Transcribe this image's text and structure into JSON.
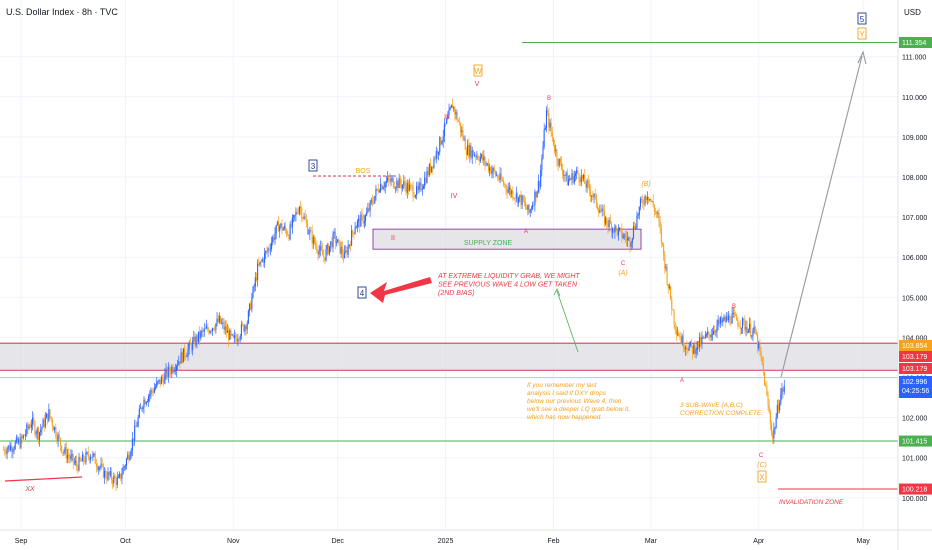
{
  "header": {
    "title": "U.S. Dollar Index · 8h · TVC",
    "currency": "USD"
  },
  "colors": {
    "up": "#2962ff",
    "down": "#f7a21b",
    "grid": "#f0f3fa",
    "red": "#f23645",
    "green": "#4caf50",
    "orange": "#f7a21b",
    "blue": "#2962ff",
    "zone": "#dcdce3",
    "arrow": "#9598a1",
    "navy": "#1e3a8a"
  },
  "chart_data": {
    "type": "candlestick",
    "y_axis": {
      "min": 99.7,
      "max": 112.2,
      "ticks": [
        100.0,
        101.0,
        102.0,
        103.0,
        104.0,
        105.0,
        106.0,
        107.0,
        108.0,
        109.0,
        110.0,
        111.0
      ]
    },
    "x_axis": {
      "ticks": [
        {
          "label": "Sep",
          "day": 0
        },
        {
          "label": "Oct",
          "day": 30
        },
        {
          "label": "Nov",
          "day": 61
        },
        {
          "label": "Dec",
          "day": 91
        },
        {
          "label": "2025",
          "day": 122
        },
        {
          "label": "Feb",
          "day": 153
        },
        {
          "label": "Mar",
          "day": 181
        },
        {
          "label": "Apr",
          "day": 212
        },
        {
          "label": "May",
          "day": 242
        }
      ],
      "max_day": 260
    },
    "price_path": [
      [
        -5,
        101.2
      ],
      [
        0,
        101.4
      ],
      [
        3,
        101.9
      ],
      [
        5,
        101.6
      ],
      [
        8,
        102.1
      ],
      [
        12,
        101.2
      ],
      [
        16,
        100.8
      ],
      [
        20,
        101.1
      ],
      [
        24,
        100.6
      ],
      [
        28,
        100.4
      ],
      [
        31,
        101.1
      ],
      [
        35,
        102.4
      ],
      [
        40,
        102.9
      ],
      [
        43,
        103.2
      ],
      [
        48,
        103.7
      ],
      [
        52,
        104.1
      ],
      [
        57,
        104.4
      ],
      [
        61,
        103.9
      ],
      [
        65,
        104.4
      ],
      [
        68,
        105.7
      ],
      [
        71,
        106.2
      ],
      [
        74,
        106.8
      ],
      [
        77,
        106.6
      ],
      [
        80,
        107.3
      ],
      [
        82,
        106.8
      ],
      [
        84,
        106.4
      ],
      [
        87,
        106.0
      ],
      [
        90,
        106.5
      ],
      [
        93,
        106.0
      ],
      [
        96,
        106.8
      ],
      [
        99,
        107.0
      ],
      [
        103,
        107.8
      ],
      [
        106,
        107.9
      ],
      [
        110,
        107.8
      ],
      [
        114,
        107.6
      ],
      [
        118,
        108.3
      ],
      [
        121,
        109.0
      ],
      [
        124,
        109.8
      ],
      [
        126,
        109.3
      ],
      [
        128,
        108.7
      ],
      [
        132,
        108.5
      ],
      [
        136,
        108.1
      ],
      [
        140,
        107.7
      ],
      [
        144,
        107.4
      ],
      [
        146,
        107.1
      ],
      [
        149,
        107.9
      ],
      [
        151,
        109.6
      ],
      [
        154,
        108.5
      ],
      [
        157,
        107.9
      ],
      [
        160,
        108.1
      ],
      [
        164,
        107.6
      ],
      [
        168,
        106.9
      ],
      [
        172,
        106.6
      ],
      [
        175,
        106.4
      ],
      [
        178,
        107.3
      ],
      [
        180,
        107.6
      ],
      [
        183,
        107.0
      ],
      [
        186,
        105.3
      ],
      [
        188,
        104.3
      ],
      [
        190,
        103.9
      ],
      [
        193,
        103.7
      ],
      [
        197,
        104.0
      ],
      [
        200,
        104.3
      ],
      [
        204,
        104.5
      ],
      [
        208,
        104.3
      ],
      [
        211,
        104.1
      ],
      [
        213,
        103.3
      ],
      [
        216,
        101.5
      ],
      [
        218,
        102.5
      ],
      [
        220,
        102.9
      ],
      [
        222,
        103.2
      ],
      [
        224,
        102.1
      ],
      [
        225,
        102.7
      ]
    ],
    "horizontal_levels": [
      {
        "label": "111.354",
        "value": 111.354
      },
      {
        "label": "101.415",
        "value": 101.415
      },
      {
        "label": "100.218",
        "value": 100.218
      }
    ],
    "resistance_zone": {
      "top": 103.854,
      "bottom": 103.179
    },
    "supply_zone": {
      "top": 106.7,
      "bottom": 106.2,
      "label": "SUPPLY ZONE"
    },
    "price_labels": [
      {
        "text": "103.854"
      },
      {
        "text": "103.179"
      },
      {
        "text": "103.179"
      },
      {
        "text": "102.996"
      },
      {
        "text": "04:25:56"
      }
    ],
    "axis_partial": "104.000",
    "wave_labels": {
      "w3": "3",
      "w4": "4",
      "w5": "5",
      "wY": "Y",
      "wW": "W",
      "wX": "X",
      "ii": "II",
      "iii": "III",
      "iv": "IV",
      "v": "V",
      "b": "B",
      "a1": "A",
      "b2": "B",
      "a2": "A",
      "c1": "C",
      "c2": "C",
      "paren_a": "(A)",
      "paren_b": "(B)",
      "paren_c": "(C)",
      "xx": "XX"
    },
    "annotations": {
      "bos": "BOS",
      "liquidity": [
        "AT EXTREME LIQUIDITY GRAB, WE MIGHT",
        "SEE PREVIOUS WAVE 4 LOW GET TAKEN",
        "(2ND BIAS)"
      ],
      "remember": [
        "If you remember my last",
        "analysis I said if DXY drops",
        "below our previous Wave 4, then",
        "we'll see a deeper LQ grab below it,",
        "which has now happened."
      ],
      "subwave": [
        "3 SUB-WAVE (A,B,C)",
        "CORRECTION COMPLETE."
      ],
      "invalidation": "INVALIDATION ZONE"
    }
  }
}
